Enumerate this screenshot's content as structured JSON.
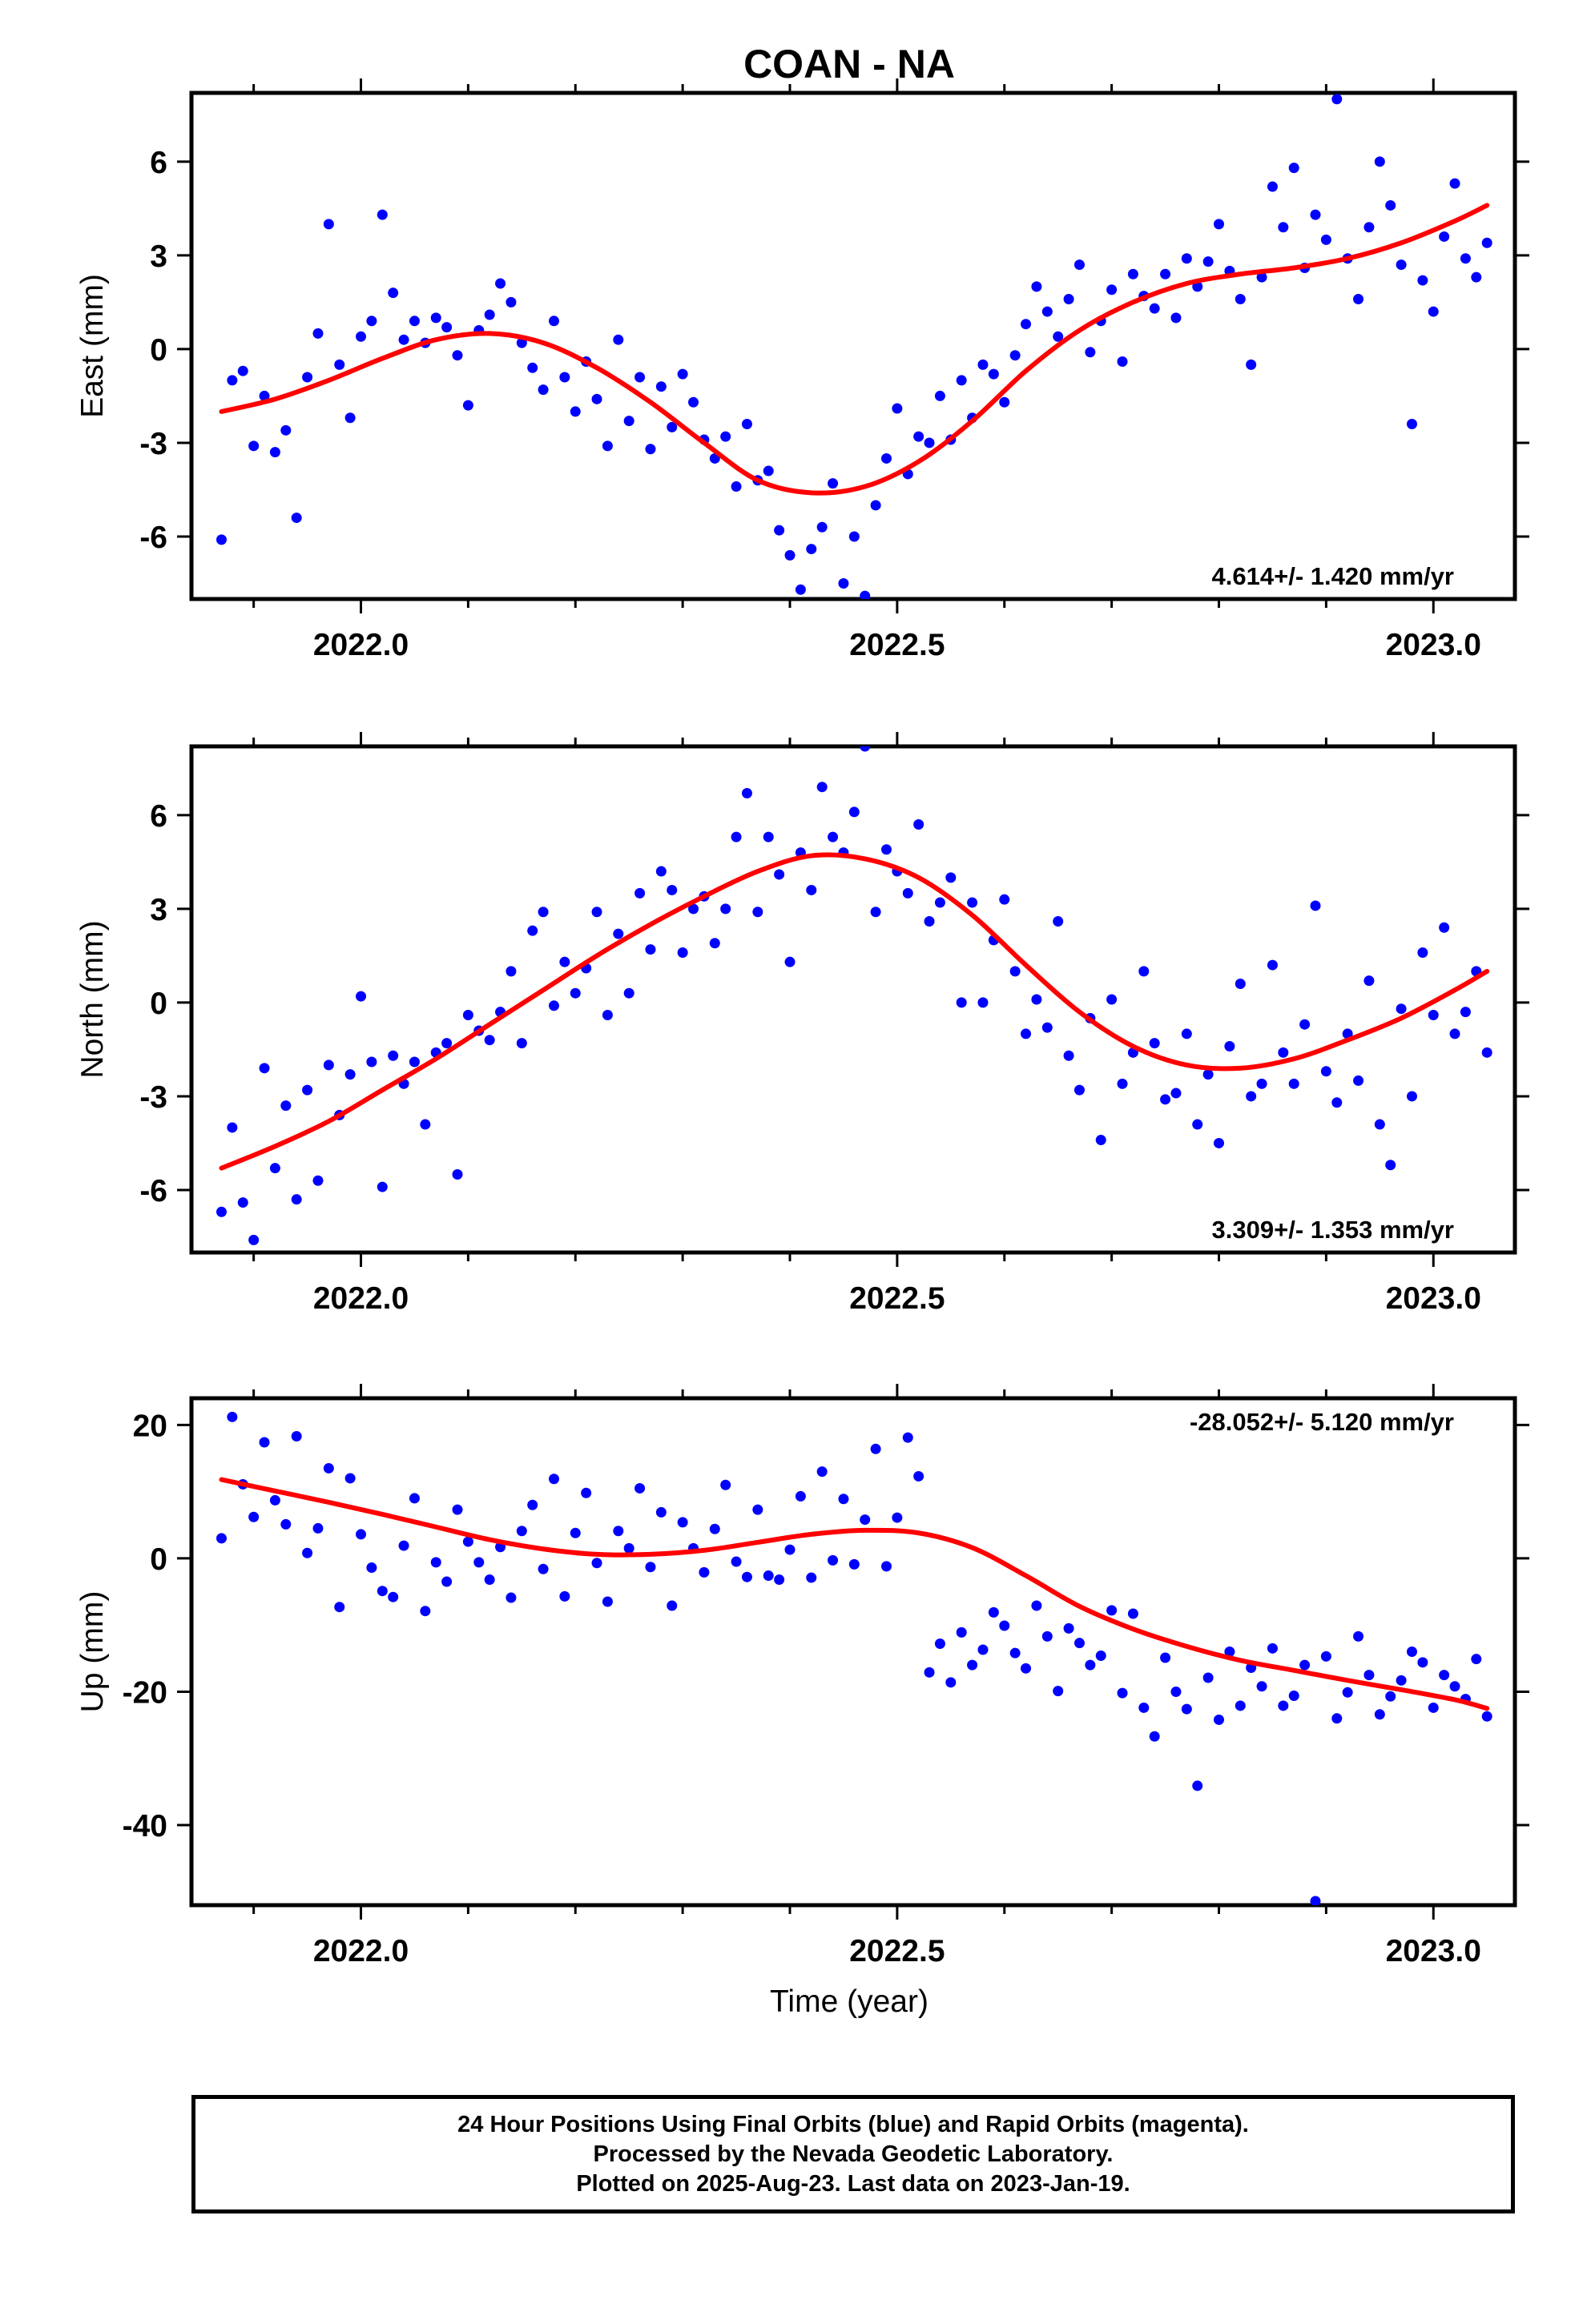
{
  "title": "COAN - NA",
  "xlabel": "Time (year)",
  "caption": {
    "line1": "24 Hour Positions Using Final Orbits (blue) and Rapid Orbits (magenta).",
    "line2": "Processed by the Nevada Geodetic Laboratory.",
    "line3": "Plotted on 2025-Aug-23. Last data on 2023-Jan-19."
  },
  "colors": {
    "final_orbits": "#0000ff",
    "fit": "#ff0000",
    "axes": "#000000"
  },
  "chart_data": [
    {
      "type": "scatter",
      "ylabel": "East (mm)",
      "rate_label": "4.614+/- 1.420 mm/yr",
      "xlim": [
        2021.842,
        2023.076
      ],
      "ylim": [
        -8,
        8.2
      ],
      "x_ticks": [
        "2022.0",
        "2022.5",
        "2023.0"
      ],
      "y_ticks": [
        "-6",
        "-3",
        "0",
        "3",
        "6"
      ],
      "series": [
        {
          "name": "Final Orbits",
          "x": [
            2021.87,
            2021.88,
            2021.89,
            2021.9,
            2021.91,
            2021.92,
            2021.93,
            2021.94,
            2021.95,
            2021.96,
            2021.97,
            2021.98,
            2021.99,
            2022.0,
            2022.01,
            2022.02,
            2022.03,
            2022.04,
            2022.05,
            2022.06,
            2022.07,
            2022.08,
            2022.09,
            2022.1,
            2022.11,
            2022.12,
            2022.13,
            2022.14,
            2022.15,
            2022.16,
            2022.17,
            2022.18,
            2022.19,
            2022.2,
            2022.21,
            2022.22,
            2022.23,
            2022.24,
            2022.25,
            2022.26,
            2022.27,
            2022.28,
            2022.29,
            2022.3,
            2022.31,
            2022.32,
            2022.33,
            2022.34,
            2022.35,
            2022.36,
            2022.37,
            2022.38,
            2022.39,
            2022.4,
            2022.41,
            2022.42,
            2022.43,
            2022.44,
            2022.45,
            2022.46,
            2022.47,
            2022.48,
            2022.49,
            2022.5,
            2022.51,
            2022.52,
            2022.53,
            2022.54,
            2022.55,
            2022.56,
            2022.57,
            2022.58,
            2022.59,
            2022.6,
            2022.61,
            2022.62,
            2022.63,
            2022.64,
            2022.65,
            2022.66,
            2022.67,
            2022.68,
            2022.69,
            2022.7,
            2022.71,
            2022.72,
            2022.73,
            2022.74,
            2022.75,
            2022.76,
            2022.77,
            2022.78,
            2022.79,
            2022.8,
            2022.81,
            2022.82,
            2022.83,
            2022.84,
            2022.85,
            2022.86,
            2022.87,
            2022.88,
            2022.89,
            2022.9,
            2022.91,
            2022.92,
            2022.93,
            2022.94,
            2022.95,
            2022.96,
            2022.97,
            2022.98,
            2022.99,
            2023.0,
            2023.01,
            2023.02,
            2023.03,
            2023.04,
            2023.05
          ],
          "y": [
            -6.1,
            -1.0,
            -0.7,
            -3.1,
            -1.5,
            -3.3,
            -2.6,
            -5.4,
            -0.9,
            0.5,
            4.0,
            -0.5,
            -2.2,
            0.4,
            0.9,
            4.3,
            1.8,
            0.3,
            0.9,
            0.2,
            1.0,
            0.7,
            -0.2,
            -1.8,
            0.6,
            1.1,
            2.1,
            1.5,
            0.2,
            -0.6,
            -1.3,
            0.9,
            -0.9,
            -2.0,
            -0.4,
            -1.6,
            -3.1,
            0.3,
            -2.3,
            -0.9,
            -3.2,
            -1.2,
            -2.5,
            -0.8,
            -1.7,
            -2.9,
            -3.5,
            -2.8,
            -4.4,
            -2.4,
            -4.2,
            -3.9,
            -5.8,
            -6.6,
            -7.7,
            -6.4,
            -5.7,
            -4.3,
            -7.5,
            -6.0,
            -7.9,
            -5.0,
            -3.5,
            -1.9,
            -4.0,
            -2.8,
            -3.0,
            -1.5,
            -2.9,
            -1.0,
            -2.2,
            -0.5,
            -0.8,
            -1.7,
            -0.2,
            0.8,
            2.0,
            1.2,
            0.4,
            1.6,
            2.7,
            -0.1,
            0.9,
            1.9,
            -0.4,
            2.4,
            1.7,
            1.3,
            2.4,
            1.0,
            2.9,
            2.0,
            2.8,
            4.0,
            2.5,
            1.6,
            -0.5,
            2.3,
            5.2,
            3.9,
            5.8,
            2.6,
            4.3,
            3.5,
            8.0,
            2.9,
            1.6,
            3.9,
            6.0,
            4.6,
            2.7,
            -2.4,
            2.2,
            1.2,
            3.6,
            5.3,
            2.9,
            2.3,
            3.4
          ],
          "values_note": ""
        }
      ],
      "fit": {
        "x": [
          2021.87,
          2021.92,
          2021.97,
          2022.02,
          2022.07,
          2022.12,
          2022.17,
          2022.22,
          2022.27,
          2022.32,
          2022.37,
          2022.42,
          2022.47,
          2022.52,
          2022.57,
          2022.62,
          2022.67,
          2022.72,
          2022.77,
          2022.82,
          2022.87,
          2022.92,
          2022.97,
          2023.02,
          2023.05
        ],
        "y": [
          -2.0,
          -1.6,
          -1.0,
          -0.3,
          0.3,
          0.5,
          0.2,
          -0.6,
          -1.7,
          -3.0,
          -4.2,
          -4.6,
          -4.4,
          -3.6,
          -2.3,
          -0.7,
          0.6,
          1.5,
          2.1,
          2.4,
          2.6,
          2.9,
          3.4,
          4.1,
          4.6
        ]
      }
    },
    {
      "type": "scatter",
      "ylabel": "North (mm)",
      "rate_label": "3.309+/- 1.353 mm/yr",
      "xlim": [
        2021.842,
        2023.076
      ],
      "ylim": [
        -8,
        8.2
      ],
      "x_ticks": [
        "2022.0",
        "2022.5",
        "2023.0"
      ],
      "y_ticks": [
        "-6",
        "-3",
        "0",
        "3",
        "6"
      ],
      "series": [
        {
          "name": "Final Orbits",
          "x": [
            2021.87,
            2021.88,
            2021.89,
            2021.9,
            2021.91,
            2021.92,
            2021.93,
            2021.94,
            2021.95,
            2021.96,
            2021.97,
            2021.98,
            2021.99,
            2022.0,
            2022.01,
            2022.02,
            2022.03,
            2022.04,
            2022.05,
            2022.06,
            2022.07,
            2022.08,
            2022.09,
            2022.1,
            2022.11,
            2022.12,
            2022.13,
            2022.14,
            2022.15,
            2022.16,
            2022.17,
            2022.18,
            2022.19,
            2022.2,
            2022.21,
            2022.22,
            2022.23,
            2022.24,
            2022.25,
            2022.26,
            2022.27,
            2022.28,
            2022.29,
            2022.3,
            2022.31,
            2022.32,
            2022.33,
            2022.34,
            2022.35,
            2022.36,
            2022.37,
            2022.38,
            2022.39,
            2022.4,
            2022.41,
            2022.42,
            2022.43,
            2022.44,
            2022.45,
            2022.46,
            2022.47,
            2022.48,
            2022.49,
            2022.5,
            2022.51,
            2022.52,
            2022.53,
            2022.54,
            2022.55,
            2022.56,
            2022.57,
            2022.58,
            2022.59,
            2022.6,
            2022.61,
            2022.62,
            2022.63,
            2022.64,
            2022.65,
            2022.66,
            2022.67,
            2022.68,
            2022.69,
            2022.7,
            2022.71,
            2022.72,
            2022.73,
            2022.74,
            2022.75,
            2022.76,
            2022.77,
            2022.78,
            2022.79,
            2022.8,
            2022.81,
            2022.82,
            2022.83,
            2022.84,
            2022.85,
            2022.86,
            2022.87,
            2022.88,
            2022.89,
            2022.9,
            2022.91,
            2022.92,
            2022.93,
            2022.94,
            2022.95,
            2022.96,
            2022.97,
            2022.98,
            2022.99,
            2023.0,
            2023.01,
            2023.02,
            2023.03,
            2023.04,
            2023.05
          ],
          "y": [
            -6.7,
            -4.0,
            -6.4,
            -7.6,
            -2.1,
            -5.3,
            -3.3,
            -6.3,
            -2.8,
            -5.7,
            -2.0,
            -3.6,
            -2.3,
            0.2,
            -1.9,
            -5.9,
            -1.7,
            -2.6,
            -1.9,
            -3.9,
            -1.6,
            -1.3,
            -5.5,
            -0.4,
            -0.9,
            -1.2,
            -0.3,
            1.0,
            -1.3,
            2.3,
            2.9,
            -0.1,
            1.3,
            0.3,
            1.1,
            2.9,
            -0.4,
            2.2,
            0.3,
            3.5,
            1.7,
            4.2,
            3.6,
            1.6,
            3.0,
            3.4,
            1.9,
            3.0,
            5.3,
            6.7,
            2.9,
            5.3,
            4.1,
            1.3,
            4.8,
            3.6,
            6.9,
            5.3,
            4.8,
            6.1,
            8.2,
            2.9,
            4.9,
            4.2,
            3.5,
            5.7,
            2.6,
            3.2,
            4.0,
            0.0,
            3.2,
            0.0,
            2.0,
            3.3,
            1.0,
            -1.0,
            0.1,
            -0.8,
            2.6,
            -1.7,
            -2.8,
            -0.5,
            -4.4,
            0.1,
            -2.6,
            -1.6,
            1.0,
            -1.3,
            -3.1,
            -2.9,
            -1.0,
            -3.9,
            -2.3,
            -4.5,
            -1.4,
            0.6,
            -3.0,
            -2.6,
            1.2,
            -1.6,
            -2.6,
            -0.7,
            3.1,
            -2.2,
            -3.2,
            -1.0,
            -2.5,
            0.7,
            -3.9,
            -5.2,
            -0.2,
            -3.0,
            1.6,
            -0.4,
            2.4,
            -1.0,
            -0.3,
            1.0,
            -1.6
          ],
          "values_note": ""
        }
      ],
      "fit": {
        "x": [
          2021.87,
          2021.92,
          2021.97,
          2022.02,
          2022.07,
          2022.12,
          2022.17,
          2022.22,
          2022.27,
          2022.32,
          2022.37,
          2022.42,
          2022.47,
          2022.52,
          2022.57,
          2022.62,
          2022.67,
          2022.72,
          2022.77,
          2022.82,
          2022.87,
          2022.92,
          2022.97,
          2023.02,
          2023.05
        ],
        "y": [
          -5.3,
          -4.6,
          -3.8,
          -2.8,
          -1.8,
          -0.7,
          0.4,
          1.5,
          2.5,
          3.4,
          4.2,
          4.7,
          4.6,
          4.0,
          2.8,
          1.2,
          -0.3,
          -1.4,
          -2.0,
          -2.1,
          -1.8,
          -1.2,
          -0.5,
          0.4,
          1.0
        ]
      }
    },
    {
      "type": "scatter",
      "ylabel": "Up (mm)",
      "rate_label": "-28.052+/- 5.120 mm/yr",
      "xlim": [
        2021.842,
        2023.076
      ],
      "ylim": [
        -52,
        24
      ],
      "x_ticks": [
        "2022.0",
        "2022.5",
        "2023.0"
      ],
      "y_ticks": [
        "-40",
        "-20",
        "0",
        "20"
      ],
      "series": [
        {
          "name": "Final Orbits",
          "x": [
            2021.87,
            2021.88,
            2021.89,
            2021.9,
            2021.91,
            2021.92,
            2021.93,
            2021.94,
            2021.95,
            2021.96,
            2021.97,
            2021.98,
            2021.99,
            2022.0,
            2022.01,
            2022.02,
            2022.03,
            2022.04,
            2022.05,
            2022.06,
            2022.07,
            2022.08,
            2022.09,
            2022.1,
            2022.11,
            2022.12,
            2022.13,
            2022.14,
            2022.15,
            2022.16,
            2022.17,
            2022.18,
            2022.19,
            2022.2,
            2022.21,
            2022.22,
            2022.23,
            2022.24,
            2022.25,
            2022.26,
            2022.27,
            2022.28,
            2022.29,
            2022.3,
            2022.31,
            2022.32,
            2022.33,
            2022.34,
            2022.35,
            2022.36,
            2022.37,
            2022.38,
            2022.39,
            2022.4,
            2022.41,
            2022.42,
            2022.43,
            2022.44,
            2022.45,
            2022.46,
            2022.47,
            2022.48,
            2022.49,
            2022.5,
            2022.51,
            2022.52,
            2022.53,
            2022.54,
            2022.55,
            2022.56,
            2022.57,
            2022.58,
            2022.59,
            2022.6,
            2022.61,
            2022.62,
            2022.63,
            2022.64,
            2022.65,
            2022.66,
            2022.67,
            2022.68,
            2022.69,
            2022.7,
            2022.71,
            2022.72,
            2022.73,
            2022.74,
            2022.75,
            2022.76,
            2022.77,
            2022.78,
            2022.79,
            2022.8,
            2022.81,
            2022.82,
            2022.83,
            2022.84,
            2022.85,
            2022.86,
            2022.87,
            2022.88,
            2022.89,
            2022.9,
            2022.91,
            2022.92,
            2022.93,
            2022.94,
            2022.95,
            2022.96,
            2022.97,
            2022.98,
            2022.99,
            2023.0,
            2023.01,
            2023.02,
            2023.03,
            2023.04,
            2023.05
          ],
          "y": [
            3.0,
            21.2,
            11.1,
            6.2,
            17.4,
            8.7,
            5.1,
            18.3,
            0.8,
            4.5,
            13.5,
            -7.3,
            12.0,
            3.6,
            -1.4,
            -4.9,
            -5.8,
            1.9,
            9.0,
            -7.9,
            -0.6,
            -3.5,
            7.3,
            2.5,
            -0.6,
            -3.2,
            1.7,
            -5.9,
            4.1,
            8.0,
            -1.6,
            11.9,
            -5.7,
            3.8,
            9.8,
            -0.7,
            -6.5,
            4.1,
            1.5,
            10.5,
            -1.3,
            6.9,
            -7.1,
            5.4,
            1.5,
            -2.1,
            4.4,
            11.0,
            -0.5,
            -2.8,
            7.3,
            -2.6,
            -3.2,
            1.3,
            9.3,
            -2.9,
            13.0,
            -0.3,
            8.9,
            -0.9,
            5.8,
            16.4,
            -1.2,
            6.1,
            18.1,
            12.3,
            -17.1,
            -12.8,
            -18.6,
            -11.1,
            -16.0,
            -13.7,
            -8.1,
            -10.1,
            -14.2,
            -16.5,
            -7.1,
            -11.7,
            -19.9,
            -10.5,
            -12.7,
            -16.0,
            -14.6,
            -7.8,
            -20.2,
            -8.3,
            -22.4,
            -26.7,
            -14.9,
            -20.0,
            -22.6,
            -34.1,
            -17.9,
            -24.2,
            -14.0,
            -22.1,
            -16.4,
            -19.2,
            -13.5,
            -22.1,
            -20.6,
            -16.0,
            -51.4,
            -14.7,
            -24.0,
            -20.1,
            -11.7,
            -17.5,
            -23.4,
            -20.7,
            -18.3,
            -14.0,
            -15.6,
            -22.4,
            -17.5,
            -19.2,
            -21.1,
            -15.1,
            -23.7
          ],
          "values_note": ""
        }
      ],
      "fit": {
        "x": [
          2021.87,
          2021.92,
          2021.97,
          2022.02,
          2022.07,
          2022.12,
          2022.17,
          2022.22,
          2022.27,
          2022.32,
          2022.37,
          2022.42,
          2022.47,
          2022.52,
          2022.57,
          2022.62,
          2022.67,
          2022.72,
          2022.77,
          2022.82,
          2022.87,
          2022.92,
          2022.97,
          2023.02,
          2023.05
        ],
        "y": [
          11.8,
          10.1,
          8.4,
          6.6,
          4.7,
          2.8,
          1.4,
          0.6,
          0.6,
          1.2,
          2.4,
          3.6,
          4.2,
          3.8,
          1.6,
          -2.6,
          -7.2,
          -10.6,
          -13.2,
          -15.3,
          -16.8,
          -18.3,
          -19.7,
          -21.2,
          -22.5
        ]
      }
    }
  ]
}
